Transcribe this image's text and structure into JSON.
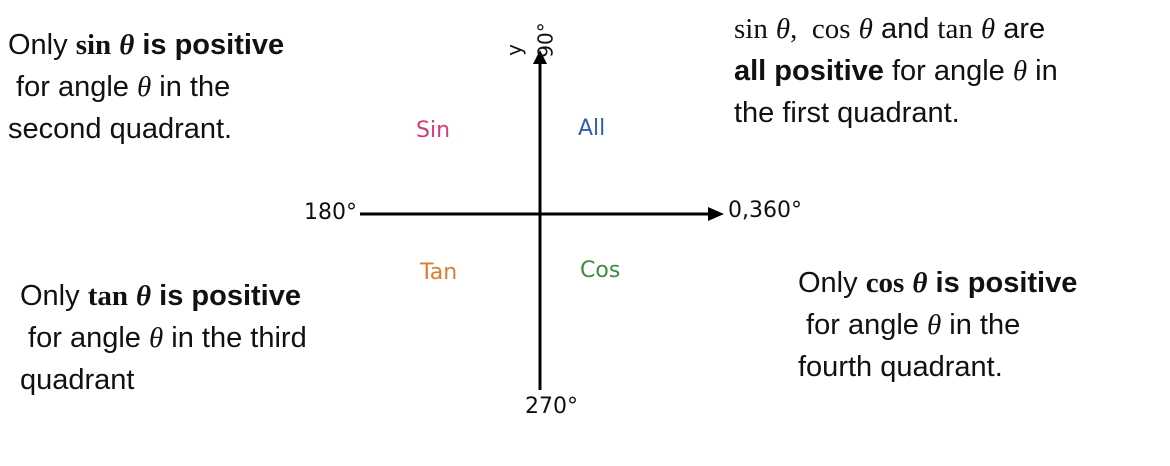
{
  "axes": {
    "y_label": "y",
    "top": "90°",
    "right": "0,360°",
    "left": "180°",
    "bottom": "270°"
  },
  "quadrants": {
    "q1": {
      "label": "All",
      "color": "#2f5fb3"
    },
    "q2": {
      "label": "Sin",
      "color": "#d63a7a"
    },
    "q3": {
      "label": "Tan",
      "color": "#e07a2e"
    },
    "q4": {
      "label": "Cos",
      "color": "#3e8a3e"
    }
  },
  "notes": {
    "second": {
      "l1_a": "Only ",
      "l1_fn": "sin",
      "l1_th": "θ",
      "l1_b": " is positive",
      "l2_a": " for angle ",
      "l2_th": "θ",
      "l2_b": " in the",
      "l3": "second quadrant."
    },
    "first": {
      "l1_s": "sin",
      "l1_t1": "θ",
      "l1_c": ",  cos",
      "l1_t2": "θ",
      "l1_and": " and ",
      "l1_tan": "tan",
      "l1_t3": "θ",
      "l1_are": " are",
      "l2_bold": "all positive",
      "l2_a": " for angle ",
      "l2_th": "θ",
      "l2_b": " in",
      "l3": "the first quadrant."
    },
    "third": {
      "l1_a": "Only ",
      "l1_fn": "tan",
      "l1_th": "θ",
      "l1_b": " is positive",
      "l2_a": " for angle ",
      "l2_th": "θ",
      "l2_b": " in the third",
      "l3": "quadrant"
    },
    "fourth": {
      "l1_a": "Only ",
      "l1_fn": "cos",
      "l1_th": "θ",
      "l1_b": " is positive",
      "l2_a": " for angle ",
      "l2_th": "θ",
      "l2_b": " in the",
      "l3": "fourth quadrant."
    }
  }
}
